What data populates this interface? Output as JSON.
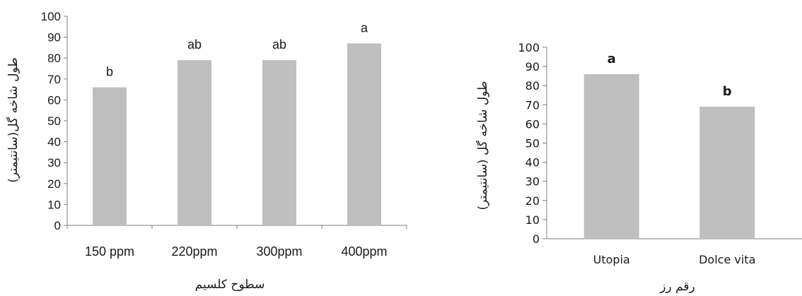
{
  "chart_data": [
    {
      "type": "bar",
      "title": "",
      "xlabel": "سطوح کلسیم",
      "ylabel": "طول شاخه گل(سانتیمتر)",
      "categories": [
        "150 ppm",
        "220ppm",
        "300ppm",
        "400ppm"
      ],
      "values": [
        66,
        79,
        79,
        87
      ],
      "data_labels": [
        "b",
        "ab",
        "ab",
        "a"
      ],
      "ylim": [
        0,
        100
      ],
      "yticks": [
        0,
        10,
        20,
        30,
        40,
        50,
        60,
        70,
        80,
        90,
        100
      ],
      "bar_color": "#bfbfbf",
      "grid": false
    },
    {
      "type": "bar",
      "title": "",
      "xlabel": "رقم رز",
      "ylabel": "طول شاخه گل (سانتیمتر)",
      "categories": [
        "Utopia",
        "Dolce vita"
      ],
      "values": [
        86,
        69
      ],
      "data_labels": [
        "a",
        "b"
      ],
      "ylim": [
        0,
        100
      ],
      "yticks": [
        0,
        10,
        20,
        30,
        40,
        50,
        60,
        70,
        80,
        90,
        100
      ],
      "bar_color": "#bfbfbf",
      "grid": false
    }
  ]
}
